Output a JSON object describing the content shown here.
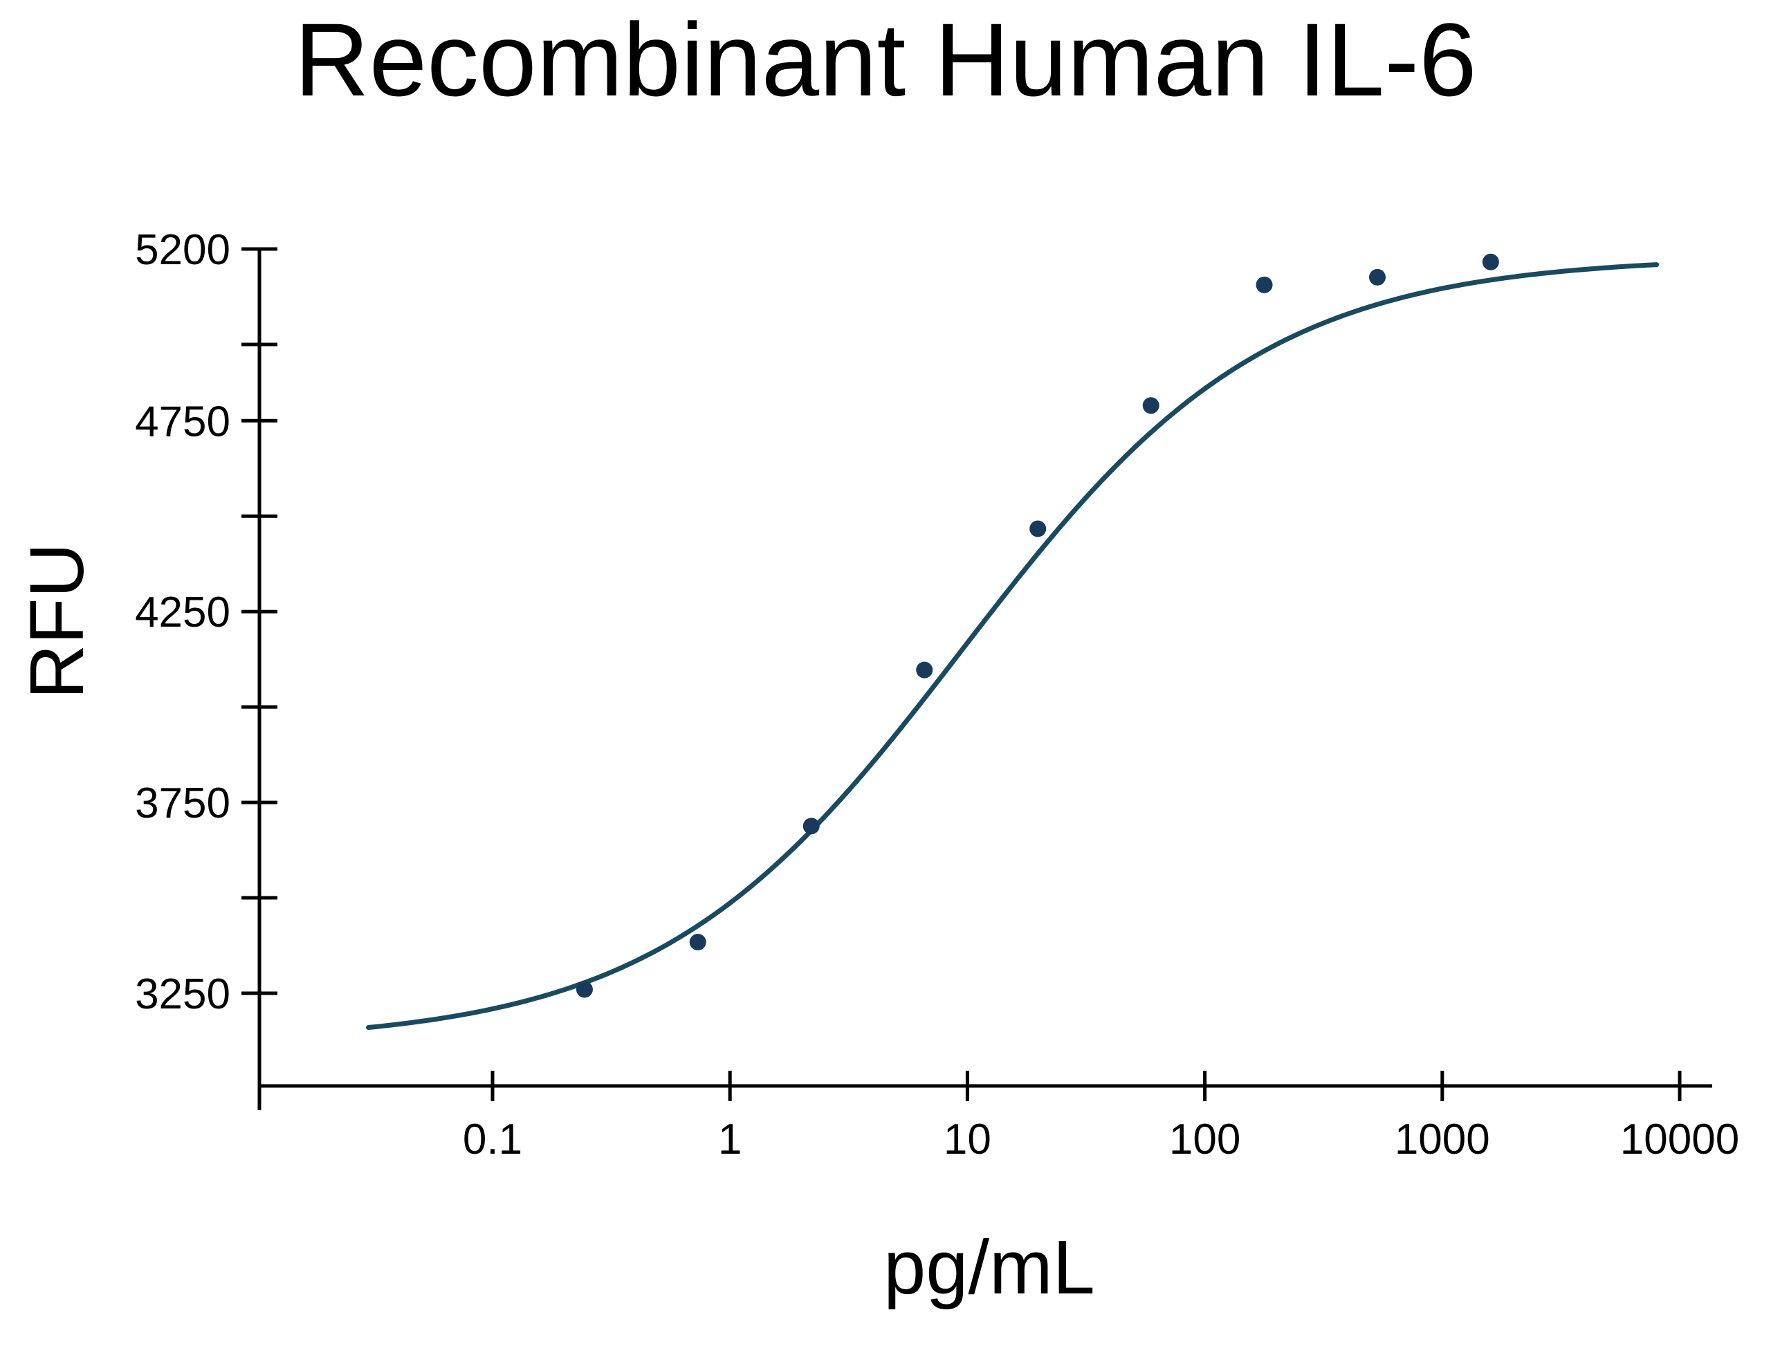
{
  "chart_data": {
    "type": "scatter",
    "title": "Recombinant Human IL-6",
    "xlabel": "pg/mL",
    "ylabel": "RFU",
    "x_scale": "log",
    "xlim": [
      0.025,
      12000
    ],
    "ylim": [
      3010,
      5200
    ],
    "x_ticks": [
      {
        "value": 0.1,
        "label": "0.1"
      },
      {
        "value": 1,
        "label": "1"
      },
      {
        "value": 10,
        "label": "10"
      },
      {
        "value": 100,
        "label": "100"
      },
      {
        "value": 1000,
        "label": "1000"
      },
      {
        "value": 10000,
        "label": "10000"
      }
    ],
    "y_ticks_major": [
      {
        "value": 3250,
        "label": "3250"
      },
      {
        "value": 3750,
        "label": "3750"
      },
      {
        "value": 4250,
        "label": "4250"
      },
      {
        "value": 4750,
        "label": "4750"
      },
      {
        "value": 5200,
        "label": "5200"
      }
    ],
    "y_ticks_minor": [
      3500,
      4000,
      4500,
      4950
    ],
    "grid": false,
    "legend": "none",
    "colors": {
      "points": "#1a3a5c",
      "curve": "#1a4a60"
    },
    "points": [
      {
        "x": 0.244,
        "y": 3260
      },
      {
        "x": 0.732,
        "y": 3384
      },
      {
        "x": 2.2,
        "y": 3688
      },
      {
        "x": 6.59,
        "y": 4097
      },
      {
        "x": 19.8,
        "y": 4467
      },
      {
        "x": 59.3,
        "y": 4790
      },
      {
        "x": 178,
        "y": 5106
      },
      {
        "x": 533,
        "y": 5126
      },
      {
        "x": 1600,
        "y": 5166
      }
    ],
    "fit_curve": {
      "model": "4PL",
      "bottom": 3120,
      "top": 5180,
      "ec50": 9.5,
      "hill": 0.68,
      "x_range": [
        0.03,
        8000
      ]
    }
  }
}
